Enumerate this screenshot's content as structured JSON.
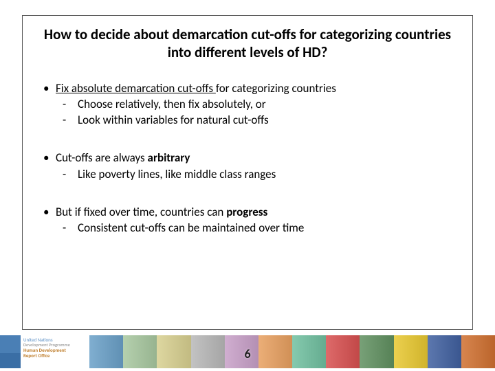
{
  "title": "How to decide about demarcation cut-offs for categorizing countries into different levels of HD?",
  "bullets": [
    {
      "main_prefix_underline": "Fix absolute demarcation cut-offs ",
      "main_rest": "for categorizing countries",
      "subs": [
        "Choose relatively, then fix absolutely, or",
        "Look within variables for natural cut-offs"
      ]
    },
    {
      "main_pre": "Cut-offs are always ",
      "main_bold": "arbitrary",
      "main_post": "",
      "subs": [
        "Like poverty lines, like middle class ranges"
      ]
    },
    {
      "main_pre": "But if fixed over time, countries can ",
      "main_bold": "progress",
      "main_post": "",
      "subs": [
        "Consistent cut-offs can be maintained over time"
      ]
    }
  ],
  "footer": {
    "undp_lines": [
      "United Nations",
      "Development Programme",
      "Human Development",
      "Report Office"
    ],
    "block_colors": [
      "#6aa0c8",
      "#a8c8a0",
      "#d8d090",
      "#b8b8b8",
      "#c8a0c8",
      "#e8a060",
      "#70c0a0",
      "#d85050",
      "#609060",
      "#e8c830",
      "#4060a0",
      "#d07030"
    ]
  },
  "page_number": "6"
}
